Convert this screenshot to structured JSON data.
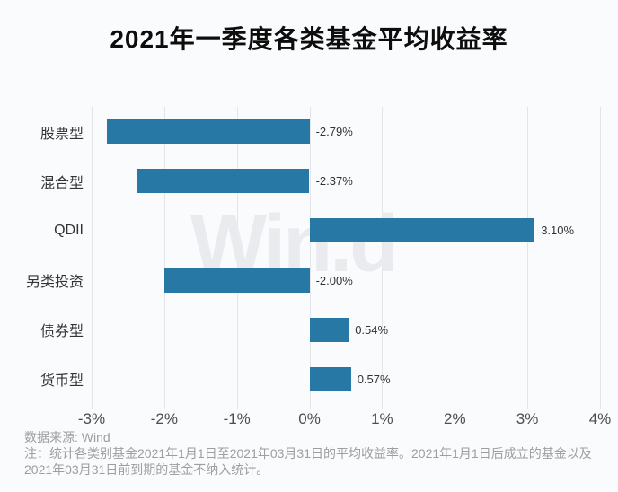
{
  "title": "2021年一季度各类基金平均收益率",
  "watermark": "Win.d",
  "chart_data": {
    "type": "bar",
    "orientation": "horizontal",
    "title": "2021年一季度各类基金平均收益率",
    "categories": [
      "股票型",
      "混合型",
      "QDII",
      "另类投资",
      "债券型",
      "货币型"
    ],
    "values": [
      -2.79,
      -2.37,
      3.1,
      -2.0,
      0.54,
      0.57
    ],
    "value_labels": [
      "-2.79%",
      "-2.37%",
      "3.10%",
      "-2.00%",
      "0.54%",
      "0.57%"
    ],
    "x_tick_values": [
      -3,
      -2,
      -1,
      0,
      1,
      2,
      3,
      4
    ],
    "x_tick_labels": [
      "-3%",
      "-2%",
      "-1%",
      "0%",
      "1%",
      "2%",
      "3%",
      "4%"
    ],
    "xlim": [
      -3,
      4
    ],
    "grid": true,
    "legend": false,
    "bar_color": "#2878a6",
    "gridline_color": "#e3e5e9"
  },
  "footer": {
    "source": "数据来源: Wind",
    "note": "注：统计各类别基金2021年1月1日至2021年03月31日的平均收益率。2021年1月1日后成立的基金以及2021年03月31日前到期的基金不纳入统计。"
  }
}
